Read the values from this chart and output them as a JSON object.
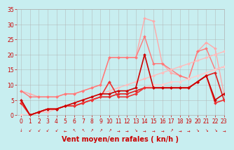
{
  "background_color": "#c8eef0",
  "grid_color": "#b0b0b0",
  "xlabel": "Vent moyen/en rafales ( kn/h )",
  "text_color": "#cc0000",
  "xlim": [
    -0.5,
    23
  ],
  "ylim": [
    0,
    35
  ],
  "yticks": [
    0,
    5,
    10,
    15,
    20,
    25,
    30,
    35
  ],
  "xticks": [
    0,
    1,
    2,
    3,
    4,
    5,
    6,
    7,
    8,
    9,
    10,
    11,
    12,
    13,
    14,
    15,
    16,
    17,
    18,
    19,
    20,
    21,
    22,
    23
  ],
  "series": [
    {
      "x": [
        0,
        1,
        2,
        3,
        4,
        5,
        6,
        7,
        8,
        9,
        10,
        11,
        12,
        13,
        14,
        15,
        16,
        17,
        18,
        19,
        20,
        21,
        22,
        23
      ],
      "y": [
        8,
        7,
        6,
        6,
        6,
        7,
        7,
        8,
        9,
        10,
        19,
        19,
        19,
        19,
        32,
        31,
        17,
        14,
        13,
        12,
        21,
        24,
        22,
        7
      ],
      "color": "#ffaaaa",
      "lw": 1.0,
      "marker": "D",
      "markersize": 2.0,
      "zorder": 1
    },
    {
      "x": [
        0,
        1,
        2,
        3,
        4,
        5,
        6,
        7,
        8,
        9,
        10,
        11,
        12,
        13,
        14,
        15,
        16,
        17,
        18,
        19,
        20,
        21,
        22,
        23
      ],
      "y": [
        8,
        6,
        6,
        6,
        6,
        7,
        7,
        8,
        9,
        10,
        19,
        19,
        19,
        19,
        26,
        17,
        17,
        15,
        13,
        12,
        21,
        22,
        15,
        16
      ],
      "color": "#ff7777",
      "lw": 1.0,
      "marker": "D",
      "markersize": 2.0,
      "zorder": 2
    },
    {
      "x": [
        0,
        1,
        2,
        3,
        4,
        5,
        6,
        7,
        8,
        9,
        10,
        11,
        12,
        13,
        14,
        15,
        16,
        17,
        18,
        19,
        20,
        21,
        22,
        23
      ],
      "y": [
        0,
        0,
        1,
        1,
        2,
        3,
        4,
        5,
        6,
        7,
        8,
        9,
        10,
        11,
        12,
        13,
        14,
        15,
        16,
        17,
        18,
        19,
        20,
        21
      ],
      "color": "#ffbbbb",
      "lw": 1.0,
      "marker": "D",
      "markersize": 2.0,
      "zorder": 3
    },
    {
      "x": [
        0,
        1,
        2,
        3,
        4,
        5,
        6,
        7,
        8,
        9,
        10,
        11,
        12,
        13,
        14,
        15,
        16,
        17,
        18,
        19,
        20,
        21,
        22,
        23
      ],
      "y": [
        0,
        0,
        1,
        2,
        2,
        3,
        3,
        4,
        5,
        6,
        6,
        7,
        7,
        8,
        9,
        10,
        10,
        11,
        11,
        12,
        13,
        14,
        15,
        16
      ],
      "color": "#ffcccc",
      "lw": 1.0,
      "marker": "D",
      "markersize": 2.0,
      "zorder": 4
    },
    {
      "x": [
        0,
        1,
        2,
        3,
        4,
        5,
        6,
        7,
        8,
        9,
        10,
        11,
        12,
        13,
        14,
        15,
        16,
        17,
        18,
        19,
        20,
        21,
        22,
        23
      ],
      "y": [
        5,
        0,
        1,
        2,
        2,
        3,
        4,
        5,
        6,
        7,
        7,
        8,
        8,
        9,
        20,
        9,
        9,
        9,
        9,
        9,
        11,
        13,
        5,
        7
      ],
      "color": "#cc0000",
      "lw": 1.2,
      "marker": "D",
      "markersize": 2.0,
      "zorder": 6
    },
    {
      "x": [
        0,
        1,
        2,
        3,
        4,
        5,
        6,
        7,
        8,
        9,
        10,
        11,
        12,
        13,
        14,
        15,
        16,
        17,
        18,
        19,
        20,
        21,
        22,
        23
      ],
      "y": [
        4,
        0,
        1,
        2,
        2,
        3,
        3,
        4,
        5,
        6,
        6,
        7,
        7,
        8,
        9,
        9,
        9,
        9,
        9,
        9,
        11,
        13,
        14,
        5
      ],
      "color": "#dd2222",
      "lw": 1.2,
      "marker": "D",
      "markersize": 2.0,
      "zorder": 5
    },
    {
      "x": [
        0,
        1,
        2,
        3,
        4,
        5,
        6,
        7,
        8,
        9,
        10,
        11,
        12,
        13,
        14,
        15,
        16,
        17,
        18,
        19,
        20,
        21,
        22,
        23
      ],
      "y": [
        4,
        0,
        1,
        2,
        2,
        3,
        3,
        4,
        5,
        6,
        11,
        6,
        6,
        7,
        9,
        9,
        9,
        9,
        9,
        9,
        11,
        13,
        4,
        5
      ],
      "color": "#ee3333",
      "lw": 1.2,
      "marker": "D",
      "markersize": 2.0,
      "zorder": 5
    }
  ],
  "wind_arrows": [
    "↓",
    "↙",
    "↙",
    "↙",
    "↙",
    "←",
    "↖",
    "↖",
    "↗",
    "↗",
    "↗",
    "→",
    "→",
    "↘",
    "→",
    "→",
    "→",
    "↗",
    "→",
    "→",
    "↘",
    "↘",
    "↘",
    "→"
  ],
  "tick_fontsize": 5.5,
  "label_fontsize": 7
}
